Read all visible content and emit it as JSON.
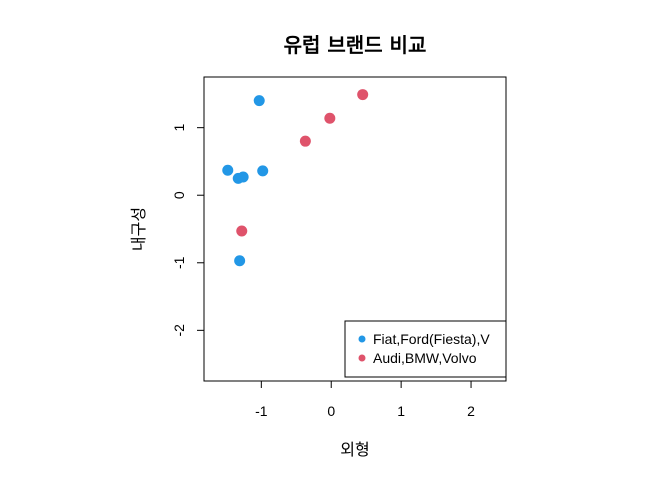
{
  "chart_data": {
    "type": "scatter",
    "title": "유럽 브랜드 비교",
    "xlabel": "외형",
    "ylabel": "내구성",
    "xlim": [
      -1.82,
      2.5
    ],
    "ylim": [
      -2.75,
      1.75
    ],
    "x_ticks": [
      -1,
      0,
      1,
      2
    ],
    "y_ticks": [
      -2,
      -1,
      0,
      1
    ],
    "x_tick_labels": [
      "-1",
      "0",
      "1",
      "2"
    ],
    "y_tick_labels": [
      "-2",
      "-1",
      "0",
      "1"
    ],
    "grid": false,
    "legend_position": "bottom-right",
    "series": [
      {
        "name": "Fiat,Ford(Fiesta),V",
        "color": "#2297E6",
        "points": [
          {
            "x": -1.03,
            "y": 1.4
          },
          {
            "x": -1.48,
            "y": 0.37
          },
          {
            "x": -1.33,
            "y": 0.25
          },
          {
            "x": -1.26,
            "y": 0.27
          },
          {
            "x": -0.98,
            "y": 0.36
          },
          {
            "x": -1.31,
            "y": -0.97
          }
        ]
      },
      {
        "name": "Audi,BMW,Volvo",
        "color": "#DF536B",
        "points": [
          {
            "x": 0.45,
            "y": 1.49
          },
          {
            "x": -0.02,
            "y": 1.14
          },
          {
            "x": -0.37,
            "y": 0.8
          },
          {
            "x": -1.28,
            "y": -0.53
          }
        ]
      }
    ]
  }
}
